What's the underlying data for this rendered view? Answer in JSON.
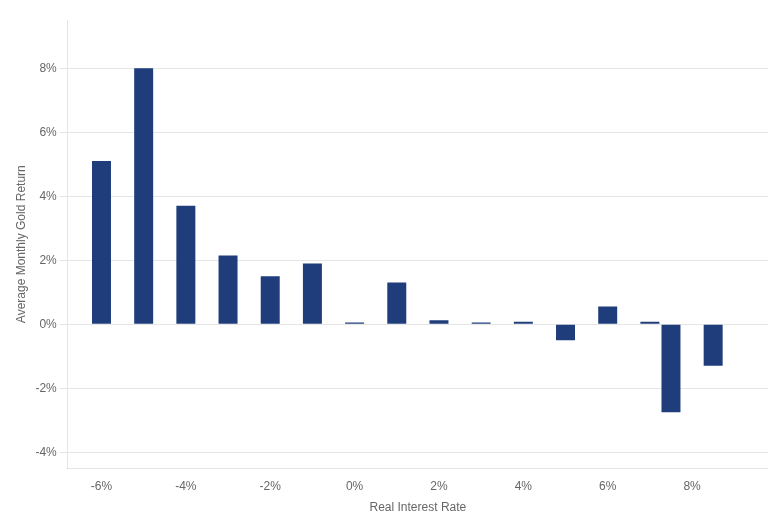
{
  "chart_data": {
    "type": "bar",
    "x": [
      -6,
      -5,
      -4,
      -3,
      -2,
      -1,
      0,
      1,
      2,
      3,
      4,
      5,
      6,
      7,
      7.5,
      8.5
    ],
    "values": [
      5.1,
      8.0,
      3.7,
      2.15,
      1.5,
      1.9,
      0.05,
      1.3,
      0.12,
      0.05,
      0.08,
      -0.5,
      0.55,
      0.08,
      -2.75,
      -1.3
    ],
    "color": "#1f3d7a",
    "xlabel": "Real Interest Rate",
    "ylabel": "Average Monthly Gold Return",
    "xlim": [
      -6.8,
      9.8
    ],
    "ylim": [
      -4.5,
      9.5
    ],
    "xticks": [
      {
        "value": -6,
        "label": "-6%"
      },
      {
        "value": -4,
        "label": "-4%"
      },
      {
        "value": -2,
        "label": "-2%"
      },
      {
        "value": 0,
        "label": "0%"
      },
      {
        "value": 2,
        "label": "2%"
      },
      {
        "value": 4,
        "label": "4%"
      },
      {
        "value": 6,
        "label": "6%"
      },
      {
        "value": 8,
        "label": "8%"
      }
    ],
    "yticks": [
      {
        "value": -4,
        "label": "-4%"
      },
      {
        "value": -2,
        "label": "-2%"
      },
      {
        "value": 0,
        "label": "0%"
      },
      {
        "value": 2,
        "label": "2%"
      },
      {
        "value": 4,
        "label": "4%"
      },
      {
        "value": 6,
        "label": "6%"
      },
      {
        "value": 8,
        "label": "8%"
      }
    ],
    "grid": "y"
  }
}
